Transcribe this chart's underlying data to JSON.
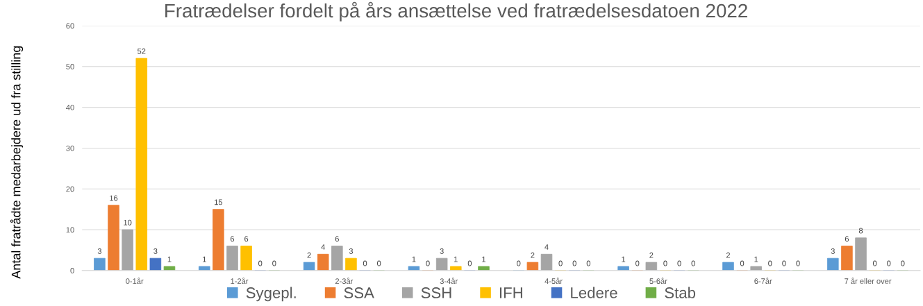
{
  "chart_data": {
    "type": "bar",
    "title": "Fratrædelser fordelt på års ansættelse ved fratrædelsesdatoen 2022",
    "ylabel": "Antal fratrådte medarbejdere ud fra stilling",
    "categories": [
      "0-1år",
      "1-2år",
      "2-3år",
      "3-4år",
      "4-5år",
      "5-6år",
      "6-7år",
      "7 år eller over"
    ],
    "series": [
      {
        "name": "Sygepl.",
        "color": "#5b9bd5",
        "values": [
          3,
          1,
          2,
          1,
          0,
          1,
          2,
          3
        ]
      },
      {
        "name": "SSA",
        "color": "#ed7d31",
        "values": [
          16,
          15,
          4,
          0,
          2,
          0,
          0,
          6
        ]
      },
      {
        "name": "SSH",
        "color": "#a5a5a5",
        "values": [
          10,
          6,
          6,
          3,
          4,
          2,
          1,
          8
        ]
      },
      {
        "name": "IFH",
        "color": "#ffc000",
        "values": [
          52,
          6,
          3,
          1,
          0,
          0,
          0,
          0
        ]
      },
      {
        "name": "Ledere",
        "color": "#4472c4",
        "values": [
          3,
          0,
          0,
          0,
          0,
          0,
          0,
          0
        ]
      },
      {
        "name": "Stab",
        "color": "#70ad47",
        "values": [
          1,
          0,
          0,
          1,
          0,
          0,
          0,
          0
        ]
      }
    ],
    "ylim": [
      0,
      60
    ],
    "yticks": [
      0,
      10,
      20,
      30,
      40,
      50,
      60
    ],
    "grid": "y",
    "legend": "bottom",
    "data_labels": true
  }
}
